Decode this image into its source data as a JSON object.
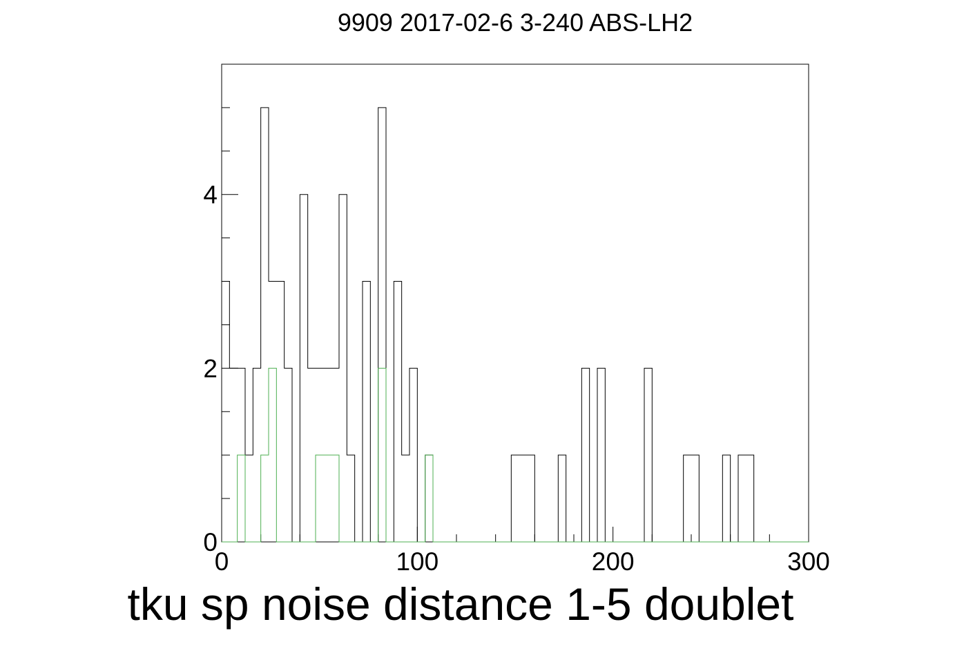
{
  "chart_data": {
    "type": "histogram",
    "title": "9909 2017-02-6 3-240 ABS-LH2",
    "xlabel": "tku sp noise distance 1-5 doublet",
    "ylabel": "",
    "xlim": [
      0,
      300
    ],
    "ylim": [
      0,
      5.5
    ],
    "bin_width": 4,
    "x_ticks": [
      0,
      100,
      200,
      300
    ],
    "y_ticks": [
      0,
      2,
      4
    ],
    "grid": false,
    "legend": "none",
    "series": [
      {
        "color": "#000000",
        "values": [
          3,
          2,
          2,
          1,
          2,
          5,
          3,
          3,
          2,
          0,
          4,
          2,
          2,
          2,
          2,
          4,
          1,
          0,
          3,
          0,
          5,
          0,
          3,
          1,
          2,
          0,
          1,
          0,
          0,
          0,
          0,
          0,
          0,
          0,
          0,
          0,
          0,
          1,
          1,
          1,
          0,
          0,
          0,
          1,
          0,
          0,
          2,
          0,
          2,
          0,
          0,
          0,
          0,
          0,
          2,
          0,
          0,
          0,
          0,
          1,
          1,
          0,
          0,
          0,
          1,
          0,
          1,
          1,
          0,
          0,
          0,
          0,
          0,
          0,
          0
        ]
      },
      {
        "color": "#4caf50",
        "values": [
          0,
          0,
          1,
          0,
          0,
          1,
          2,
          0,
          0,
          0,
          0,
          0,
          1,
          1,
          1,
          0,
          0,
          0,
          0,
          0,
          2,
          0,
          0,
          0,
          0,
          0,
          1,
          0,
          0,
          0,
          0,
          0,
          0,
          0,
          0,
          0,
          0,
          0,
          0,
          0,
          0,
          0,
          0,
          0,
          0,
          0,
          0,
          0,
          0,
          0,
          0,
          0,
          0,
          0,
          0,
          0,
          0,
          0,
          0,
          0,
          0,
          0,
          0,
          0,
          0,
          0,
          0,
          0,
          0,
          0,
          0,
          0,
          0,
          0,
          0
        ]
      }
    ]
  }
}
